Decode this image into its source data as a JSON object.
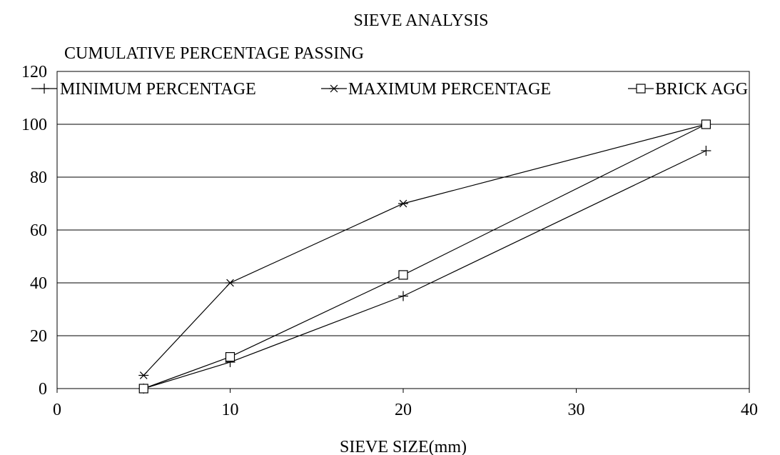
{
  "chart_data": {
    "type": "line",
    "title": "SIEVE ANALYSIS",
    "ylabel": "CUMULATIVE PERCENTAGE PASSING",
    "xlabel": "SIEVE SIZE(mm)",
    "xlim": [
      0,
      40
    ],
    "ylim": [
      0,
      120
    ],
    "xticks": [
      0,
      10,
      20,
      30,
      40
    ],
    "yticks": [
      0,
      20,
      40,
      60,
      80,
      100,
      120
    ],
    "grid": "horizontal",
    "legend_position": "top",
    "x": [
      5,
      10,
      20,
      37.5
    ],
    "series": [
      {
        "name": "MINIMUM PERCENTAGE",
        "marker": "plus",
        "values": [
          0,
          10,
          35,
          90
        ]
      },
      {
        "name": "MAXIMUM PERCENTAGE",
        "marker": "star",
        "values": [
          5,
          40,
          70,
          100
        ]
      },
      {
        "name": "BRICK AGG",
        "marker": "square",
        "values": [
          0,
          12,
          43,
          100
        ]
      }
    ]
  }
}
